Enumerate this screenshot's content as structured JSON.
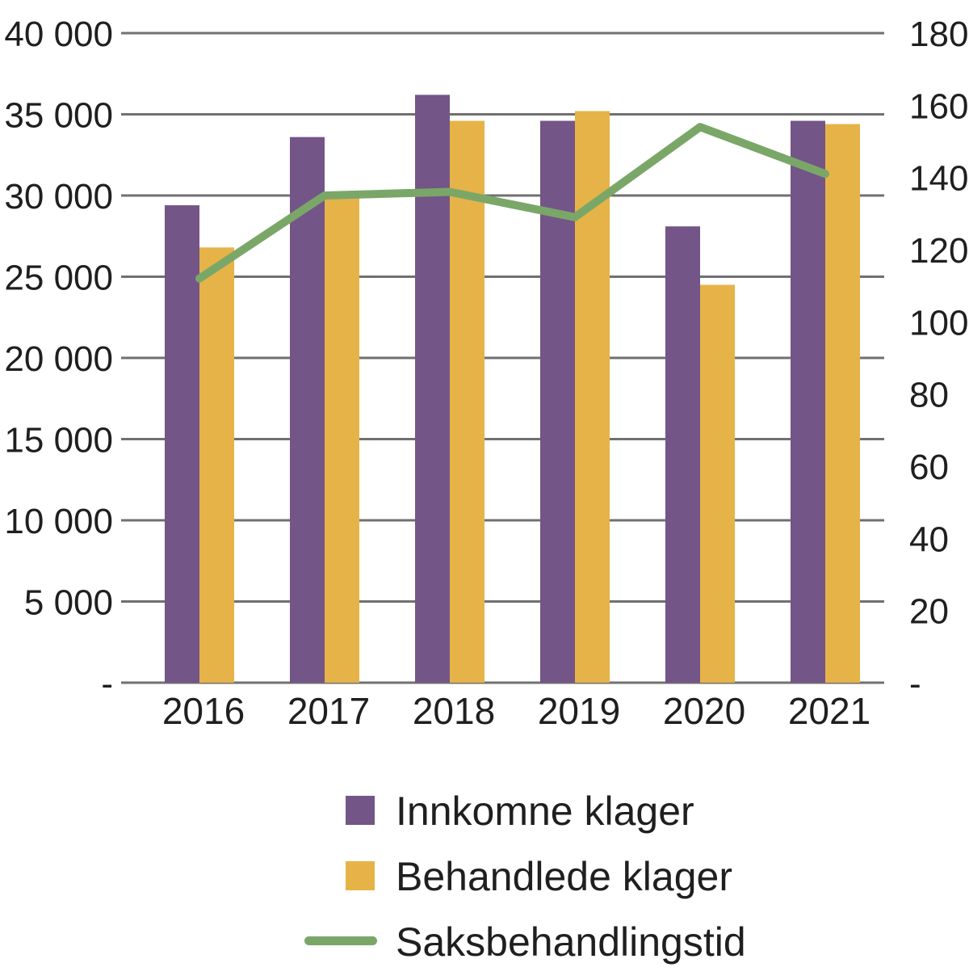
{
  "figure": {
    "background": "#ffffff",
    "text_color": "#1f1f1f",
    "grid_color": "#707070"
  },
  "chart_data": {
    "type": "combo",
    "subtype": "grouped bars (left axis) + line (right axis)",
    "categories": [
      "2016",
      "2017",
      "2018",
      "2019",
      "2020",
      "2021"
    ],
    "series": [
      {
        "name": "Innkomne klager",
        "type": "bar",
        "axis": "left",
        "color": "#745587",
        "values": [
          29400,
          33600,
          36200,
          34600,
          28100,
          34600
        ]
      },
      {
        "name": "Behandlede klager",
        "type": "bar",
        "axis": "left",
        "color": "#E6B348",
        "values": [
          26800,
          29900,
          34600,
          35200,
          24500,
          34400
        ]
      },
      {
        "name": "Saksbehandlingstid",
        "type": "line",
        "axis": "right",
        "color": "#7AA768",
        "values": [
          112,
          135,
          136,
          129,
          154,
          141
        ]
      }
    ],
    "left_axis": {
      "min": 0,
      "max": 40000,
      "step": 5000,
      "ticks": [
        {
          "value": 0,
          "label": "-"
        },
        {
          "value": 5000,
          "label": "5 000"
        },
        {
          "value": 10000,
          "label": "10 000"
        },
        {
          "value": 15000,
          "label": "15 000"
        },
        {
          "value": 20000,
          "label": "20 000"
        },
        {
          "value": 25000,
          "label": "25 000"
        },
        {
          "value": 30000,
          "label": "30 000"
        },
        {
          "value": 35000,
          "label": "35 000"
        },
        {
          "value": 40000,
          "label": "40 000"
        }
      ]
    },
    "right_axis": {
      "min": 0,
      "max": 180,
      "step": 20,
      "ticks": [
        {
          "value": 0,
          "label": "-"
        },
        {
          "value": 20,
          "label": "20"
        },
        {
          "value": 40,
          "label": "40"
        },
        {
          "value": 60,
          "label": "60"
        },
        {
          "value": 80,
          "label": "80"
        },
        {
          "value": 100,
          "label": "100"
        },
        {
          "value": 120,
          "label": "120"
        },
        {
          "value": 140,
          "label": "140"
        },
        {
          "value": 160,
          "label": "160"
        },
        {
          "value": 180,
          "label": "180"
        }
      ]
    },
    "grid": true,
    "legend_position": "bottom",
    "title": "",
    "xlabel": "",
    "ylabel_left": "",
    "ylabel_right": ""
  }
}
